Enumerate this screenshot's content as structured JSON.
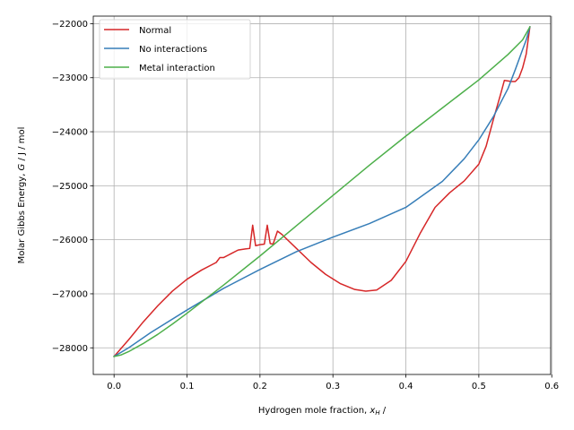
{
  "chart_data": {
    "type": "line",
    "title": "",
    "xlabel_main": "Hydrogen mole fraction, ",
    "xlabel_var": "x",
    "xlabel_sub": "H",
    "xlabel_tail": " /",
    "ylabel_main": "Molar Gibbs Energy, ",
    "ylabel_var": "G",
    "ylabel_tail": " / J / mol",
    "xlim": [
      -0.0285,
      0.5985
    ],
    "ylim": [
      -28493,
      -21860
    ],
    "xticks": [
      0.0,
      0.1,
      0.2,
      0.3,
      0.4,
      0.5,
      0.6
    ],
    "xtick_labels": [
      "0.0",
      "0.1",
      "0.2",
      "0.3",
      "0.4",
      "0.5",
      "0.6"
    ],
    "yticks": [
      -28000,
      -27000,
      -26000,
      -25000,
      -24000,
      -23000,
      -22000
    ],
    "ytick_labels": [
      "−28000",
      "−27000",
      "−26000",
      "−25000",
      "−24000",
      "−23000",
      "−22000"
    ],
    "grid": true,
    "legend_position": "upper-left",
    "series": [
      {
        "name": "Normal",
        "color": "#d62728",
        "x": [
          0.0,
          0.02,
          0.04,
          0.06,
          0.08,
          0.1,
          0.12,
          0.14,
          0.145,
          0.15,
          0.16,
          0.17,
          0.18,
          0.186,
          0.19,
          0.194,
          0.2,
          0.206,
          0.21,
          0.214,
          0.218,
          0.224,
          0.23,
          0.25,
          0.27,
          0.29,
          0.31,
          0.33,
          0.345,
          0.36,
          0.38,
          0.4,
          0.42,
          0.44,
          0.46,
          0.48,
          0.5,
          0.51,
          0.52,
          0.53,
          0.535,
          0.54,
          0.545,
          0.55,
          0.555,
          0.56,
          0.565,
          0.57
        ],
        "y": [
          -28160,
          -27850,
          -27520,
          -27220,
          -26950,
          -26730,
          -26560,
          -26420,
          -26330,
          -26330,
          -26260,
          -26190,
          -26170,
          -26160,
          -25730,
          -26110,
          -26090,
          -26080,
          -25730,
          -26070,
          -26080,
          -25840,
          -25900,
          -26160,
          -26420,
          -26640,
          -26810,
          -26920,
          -26950,
          -26930,
          -26750,
          -26400,
          -25870,
          -25400,
          -25130,
          -24910,
          -24600,
          -24270,
          -23770,
          -23300,
          -23050,
          -23060,
          -23070,
          -23070,
          -23000,
          -22820,
          -22560,
          -22060
        ]
      },
      {
        "name": "No interactions",
        "color": "#377eb8",
        "x": [
          0.0,
          0.02,
          0.05,
          0.1,
          0.15,
          0.2,
          0.25,
          0.3,
          0.35,
          0.4,
          0.45,
          0.48,
          0.5,
          0.52,
          0.54,
          0.55,
          0.56,
          0.565,
          0.57
        ],
        "y": [
          -28160,
          -28000,
          -27720,
          -27300,
          -26900,
          -26550,
          -26220,
          -25950,
          -25700,
          -25400,
          -24920,
          -24500,
          -24150,
          -23720,
          -23200,
          -22850,
          -22480,
          -22300,
          -22060
        ]
      },
      {
        "name": "Metal interaction",
        "color": "#4daf4a",
        "x": [
          0.0,
          0.01,
          0.02,
          0.04,
          0.06,
          0.08,
          0.1,
          0.15,
          0.2,
          0.25,
          0.3,
          0.35,
          0.4,
          0.45,
          0.5,
          0.54,
          0.56,
          0.57
        ],
        "y": [
          -28160,
          -28130,
          -28070,
          -27920,
          -27750,
          -27560,
          -27360,
          -26840,
          -26300,
          -25740,
          -25180,
          -24620,
          -24080,
          -23560,
          -23040,
          -22570,
          -22300,
          -22060
        ]
      }
    ]
  }
}
